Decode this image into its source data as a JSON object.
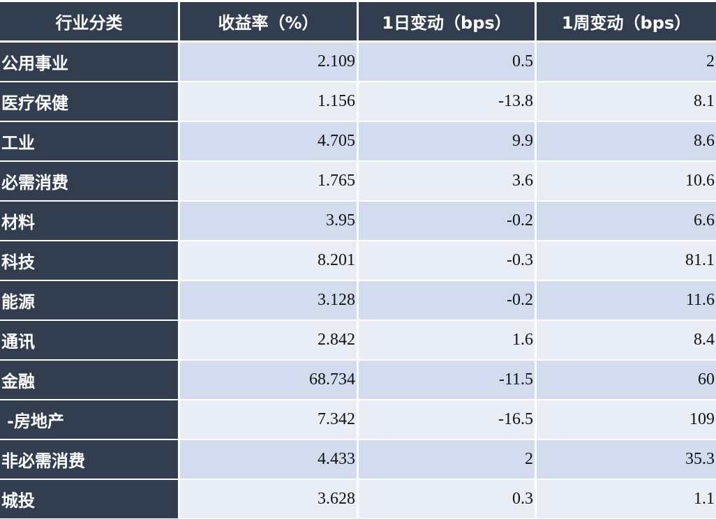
{
  "table": {
    "headers": [
      "行业分类",
      "收益率（%）",
      "1日变动（bps）",
      "1周变动（bps）"
    ],
    "rows": [
      {
        "sector": "公用事业",
        "yield": "2.109",
        "change_1d": "0.5",
        "change_1w": "2"
      },
      {
        "sector": "医疗保健",
        "yield": "1.156",
        "change_1d": "-13.8",
        "change_1w": "8.1"
      },
      {
        "sector": "工业",
        "yield": "4.705",
        "change_1d": "9.9",
        "change_1w": "8.6"
      },
      {
        "sector": "必需消费",
        "yield": "1.765",
        "change_1d": "3.6",
        "change_1w": "10.6"
      },
      {
        "sector": "材料",
        "yield": "3.95",
        "change_1d": "-0.2",
        "change_1w": "6.6"
      },
      {
        "sector": "科技",
        "yield": "8.201",
        "change_1d": "-0.3",
        "change_1w": "81.1"
      },
      {
        "sector": "能源",
        "yield": "3.128",
        "change_1d": "-0.2",
        "change_1w": "11.6"
      },
      {
        "sector": "通讯",
        "yield": "2.842",
        "change_1d": "1.6",
        "change_1w": "8.4"
      },
      {
        "sector": "金融",
        "yield": "68.734",
        "change_1d": "-11.5",
        "change_1w": "60"
      },
      {
        "sector": " -房地产",
        "yield": "7.342",
        "change_1d": "-16.5",
        "change_1w": "109"
      },
      {
        "sector": "非必需消费",
        "yield": "4.433",
        "change_1d": "2",
        "change_1w": "35.3"
      },
      {
        "sector": "城投",
        "yield": "3.628",
        "change_1d": "0.3",
        "change_1w": "1.1"
      }
    ]
  },
  "colors": {
    "header_bg": "#323e50",
    "row_odd_bg": "#d2dcee",
    "row_even_bg": "#e9edf6"
  }
}
